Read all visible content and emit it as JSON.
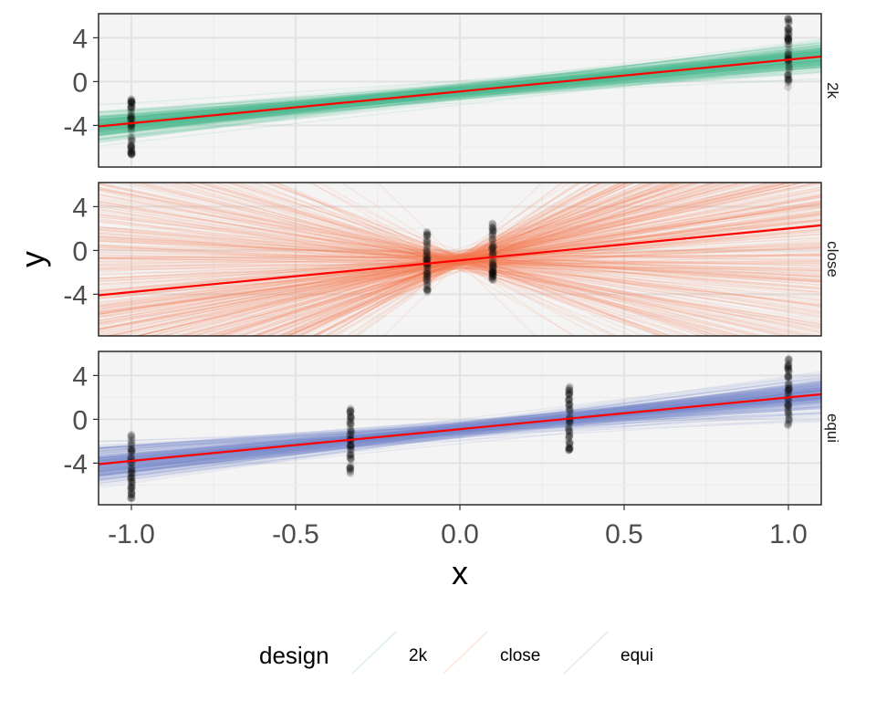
{
  "chart_data": {
    "type": "line",
    "chart_kind": "faceted spaghetti plot: many sampled regression lines per design with observed points and a true line",
    "xlabel": "x",
    "ylabel": "y",
    "xlim": [
      -1.1,
      1.1
    ],
    "ylim": [
      -7.8,
      6.2
    ],
    "x_ticks": [
      "-1.0",
      "-0.5",
      "0.0",
      "0.5",
      "1.0"
    ],
    "x_tick_values": [
      -1.0,
      -0.5,
      0.0,
      0.5,
      1.0
    ],
    "y_ticks": [
      "4",
      "0",
      "-4"
    ],
    "y_tick_values": [
      4,
      0,
      -4
    ],
    "grid": true,
    "legend": {
      "title": "design",
      "placement": "bottom",
      "items": [
        {
          "label": "2k",
          "color": "#66c2a5"
        },
        {
          "label": "close",
          "color": "#fc8d62"
        },
        {
          "label": "equi",
          "color": "#8da0cb"
        }
      ]
    },
    "true_line": {
      "color": "#ff0000",
      "intercept": -0.9,
      "slope": 2.9
    },
    "point_color": "#000000",
    "panels": [
      {
        "strip": "2k",
        "color": "#52bf93",
        "design_x": [
          -1.0,
          1.0
        ],
        "points": [
          {
            "x": -1.0,
            "ymin": -6.8,
            "ymax": -1.4
          },
          {
            "x": 1.0,
            "ymin": -0.6,
            "ymax": 5.8
          }
        ],
        "line_band": {
          "intercept_mean": -0.9,
          "intercept_sd": 0.35,
          "slope_mean": 2.9,
          "slope_sd": 0.45
        }
      },
      {
        "strip": "close",
        "color": "#f4794f",
        "design_x": [
          -0.1,
          0.1
        ],
        "points": [
          {
            "x": -0.1,
            "ymin": -3.8,
            "ymax": 1.8
          },
          {
            "x": 0.1,
            "ymin": -3.0,
            "ymax": 2.6
          }
        ],
        "line_band": {
          "intercept_mean": -0.9,
          "intercept_sd": 0.35,
          "slope_mean": 2.9,
          "slope_sd": 8.0
        }
      },
      {
        "strip": "equi",
        "color": "#7e8fcc",
        "design_x": [
          -1.0,
          -0.333,
          0.333,
          1.0
        ],
        "points": [
          {
            "x": -1.0,
            "ymin": -7.4,
            "ymax": -1.2
          },
          {
            "x": -0.333,
            "ymin": -5.0,
            "ymax": 1.0
          },
          {
            "x": 0.333,
            "ymin": -3.0,
            "ymax": 3.2
          },
          {
            "x": 1.0,
            "ymin": -0.6,
            "ymax": 5.6
          }
        ],
        "line_band": {
          "intercept_mean": -0.9,
          "intercept_sd": 0.35,
          "slope_mean": 2.9,
          "slope_sd": 0.65
        }
      }
    ]
  }
}
